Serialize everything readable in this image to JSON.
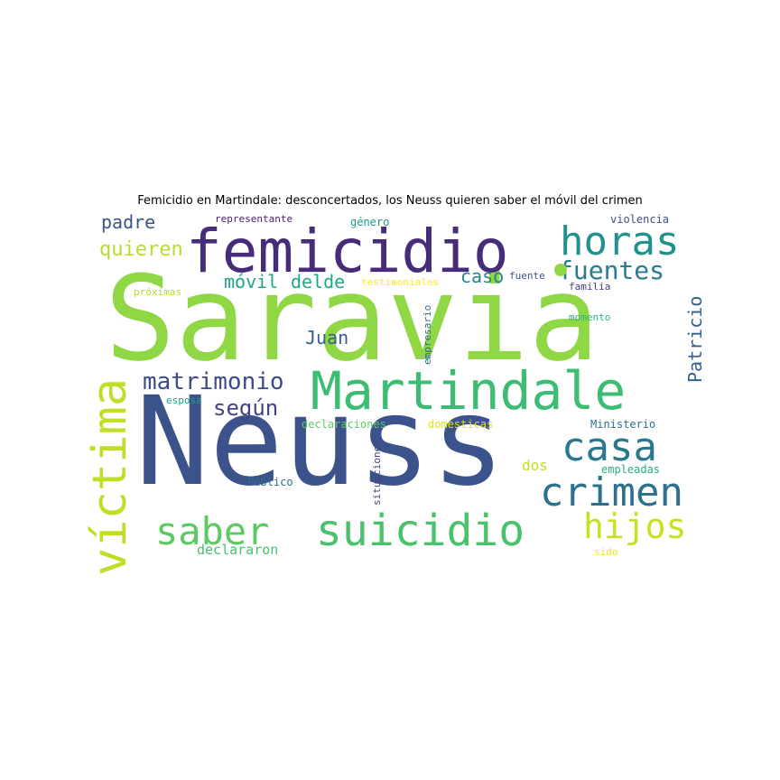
{
  "title": "Femicidio en Martindale: desconcertados, los Neuss quieren saber el móvil del crimen",
  "words": [
    {
      "text": "Saravia",
      "color": "#8fd744",
      "orientation": "horizontal"
    },
    {
      "text": "Neuss",
      "color": "#3b528b",
      "orientation": "horizontal"
    },
    {
      "text": "femicidio",
      "color": "#472c7a",
      "orientation": "horizontal"
    },
    {
      "text": "Martindale",
      "color": "#3dbc74",
      "orientation": "horizontal"
    },
    {
      "text": "suicidio",
      "color": "#4ac16d",
      "orientation": "horizontal"
    },
    {
      "text": "víctima",
      "color": "#bddf26",
      "orientation": "vertical"
    },
    {
      "text": "crimen",
      "color": "#2c718e",
      "orientation": "horizontal"
    },
    {
      "text": "casa",
      "color": "#2a788e",
      "orientation": "horizontal"
    },
    {
      "text": "horas",
      "color": "#21918c",
      "orientation": "horizontal"
    },
    {
      "text": "saber",
      "color": "#5ec962",
      "orientation": "horizontal"
    },
    {
      "text": "hijos",
      "color": "#c8e020",
      "orientation": "horizontal"
    },
    {
      "text": "fuentes",
      "color": "#287c8e",
      "orientation": "horizontal"
    },
    {
      "text": "matrimonio",
      "color": "#3e4a89",
      "orientation": "horizontal"
    },
    {
      "text": "según",
      "color": "#414487",
      "orientation": "horizontal"
    },
    {
      "text": "Patricio",
      "color": "#34618d",
      "orientation": "vertical"
    },
    {
      "text": "quieren",
      "color": "#b5de2b",
      "orientation": "horizontal"
    },
    {
      "text": "padre",
      "color": "#3a548c",
      "orientation": "horizontal"
    },
    {
      "text": "móvil",
      "color": "#20a386",
      "orientation": "horizontal"
    },
    {
      "text": "delde",
      "color": "#22a785",
      "orientation": "horizontal"
    },
    {
      "text": "caso",
      "color": "#26828e",
      "orientation": "horizontal"
    },
    {
      "text": "Juan",
      "color": "#355f8d",
      "orientation": "horizontal"
    },
    {
      "text": "dos",
      "color": "#c2df23",
      "orientation": "horizontal"
    },
    {
      "text": "declararon",
      "color": "#4ac16d",
      "orientation": "horizontal"
    },
    {
      "text": "representante",
      "color": "#481b6d",
      "orientation": "horizontal"
    },
    {
      "text": "género",
      "color": "#1f9a8a",
      "orientation": "horizontal"
    },
    {
      "text": "violencia",
      "color": "#3e4c8a",
      "orientation": "horizontal"
    },
    {
      "text": "fuente",
      "color": "#3b528b",
      "orientation": "horizontal"
    },
    {
      "text": "familia",
      "color": "#433e85",
      "orientation": "horizontal"
    },
    {
      "text": "próximas",
      "color": "#b5de2b",
      "orientation": "horizontal"
    },
    {
      "text": "testimoniales",
      "color": "#fde725",
      "orientation": "horizontal"
    },
    {
      "text": "empresario",
      "color": "#31688e",
      "orientation": "vertical"
    },
    {
      "text": "momento",
      "color": "#2fb47c",
      "orientation": "horizontal"
    },
    {
      "text": "esposa",
      "color": "#1fa188",
      "orientation": "horizontal"
    },
    {
      "text": "declaraciones",
      "color": "#5ec962",
      "orientation": "horizontal"
    },
    {
      "text": "domésticas",
      "color": "#dfe318",
      "orientation": "horizontal"
    },
    {
      "text": "Ministerio",
      "color": "#2d708e",
      "orientation": "horizontal"
    },
    {
      "text": "situaciones",
      "color": "#404688",
      "orientation": "vertical"
    },
    {
      "text": "Público",
      "color": "#2e6e8e",
      "orientation": "horizontal"
    },
    {
      "text": "empleadas",
      "color": "#26ad81",
      "orientation": "horizontal"
    },
    {
      "text": "sido",
      "color": "#f1e51d",
      "orientation": "horizontal"
    }
  ]
}
